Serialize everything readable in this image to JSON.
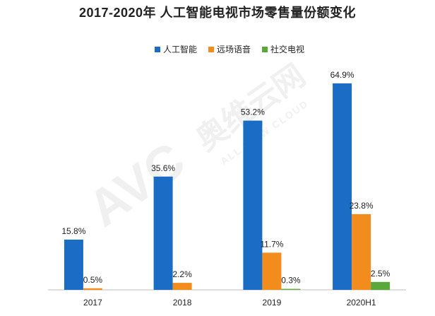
{
  "chart_data": {
    "type": "bar",
    "title": "2017-2020年 人工智能电视市场零售量份额变化",
    "categories": [
      "2017",
      "2018",
      "2019",
      "2020H1"
    ],
    "series": [
      {
        "name": "人工智能",
        "values": [
          15.8,
          35.6,
          53.2,
          64.9
        ],
        "labels": [
          "15.8%",
          "35.6%",
          "53.2%",
          "64.9%"
        ],
        "color": "#1a6cc4"
      },
      {
        "name": "远场语音",
        "values": [
          0.5,
          2.2,
          11.7,
          23.8
        ],
        "labels": [
          "0.5%",
          "2.2%",
          "11.7%",
          "23.8%"
        ],
        "color": "#f28c1d"
      },
      {
        "name": "社交电视",
        "values": [
          0,
          0,
          0.3,
          2.5
        ],
        "labels": [
          "",
          "",
          "0.3%",
          "2.5%"
        ],
        "color": "#5aa83a"
      }
    ],
    "xlabel": "",
    "ylabel": "",
    "ylim": [
      0,
      70
    ],
    "grid": false,
    "legend_position": "top-center"
  },
  "watermark": {
    "brand": "AVC",
    "text_cn": "奥维云网",
    "text_en": "ALL VIEW CLOUD"
  }
}
